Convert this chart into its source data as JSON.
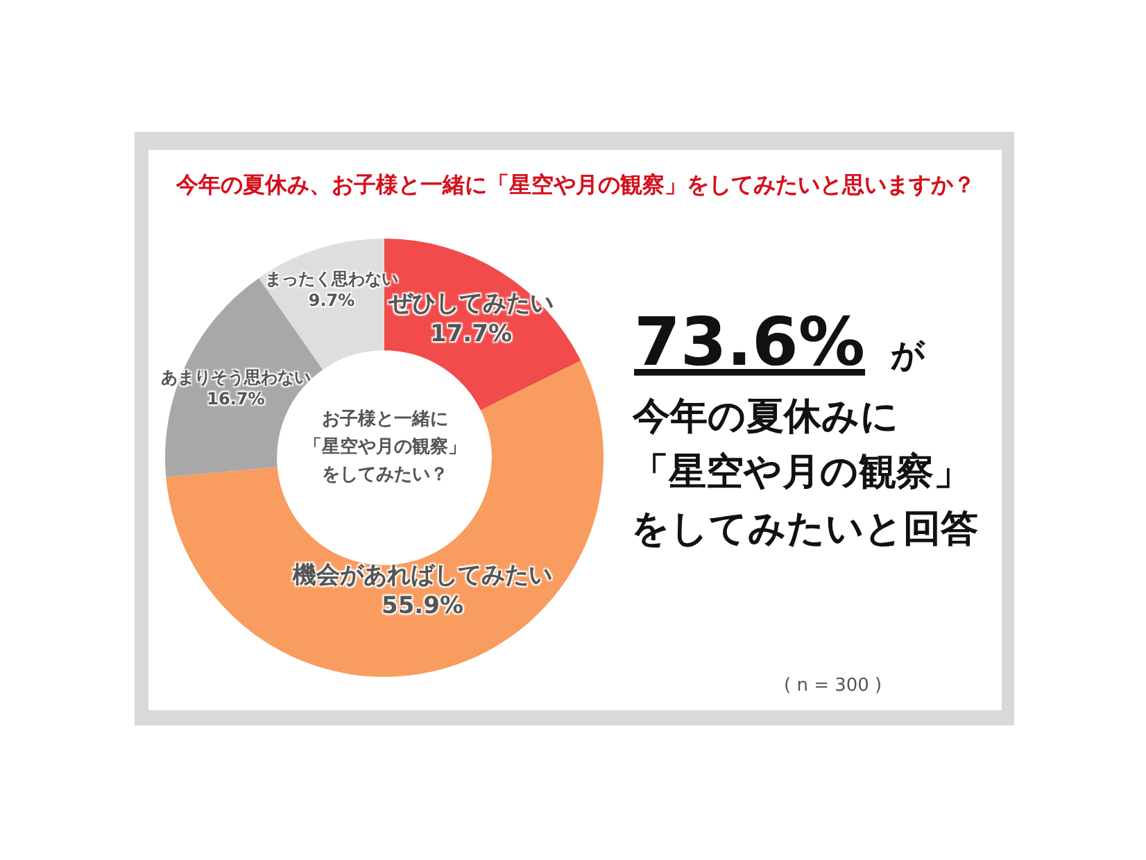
{
  "chart_data": {
    "type": "donut",
    "title": "今年の夏休み、お子様と一緒に「星空や月の観察」をしてみたいと思いますか？",
    "categories": [
      "ぜひしてみたい",
      "機会があればしてみたい",
      "あまりそう思わない",
      "まったく思わない"
    ],
    "values": [
      17.7,
      55.9,
      16.7,
      9.7
    ],
    "colors": [
      "#f24b4b",
      "#f99c5f",
      "#a8a8a8",
      "#dedede"
    ],
    "value_labels": [
      "17.7%",
      "55.9%",
      "16.7%",
      "9.7%"
    ],
    "annotations": [
      "お子様と一緒に",
      "「星空や月の観察」",
      "をしてみたい？",
      "73.6%",
      "が",
      "今年の夏休みに",
      "「星空や月の観察」",
      "をしてみたいと回答",
      "( n = 300 )"
    ],
    "legend": false
  }
}
